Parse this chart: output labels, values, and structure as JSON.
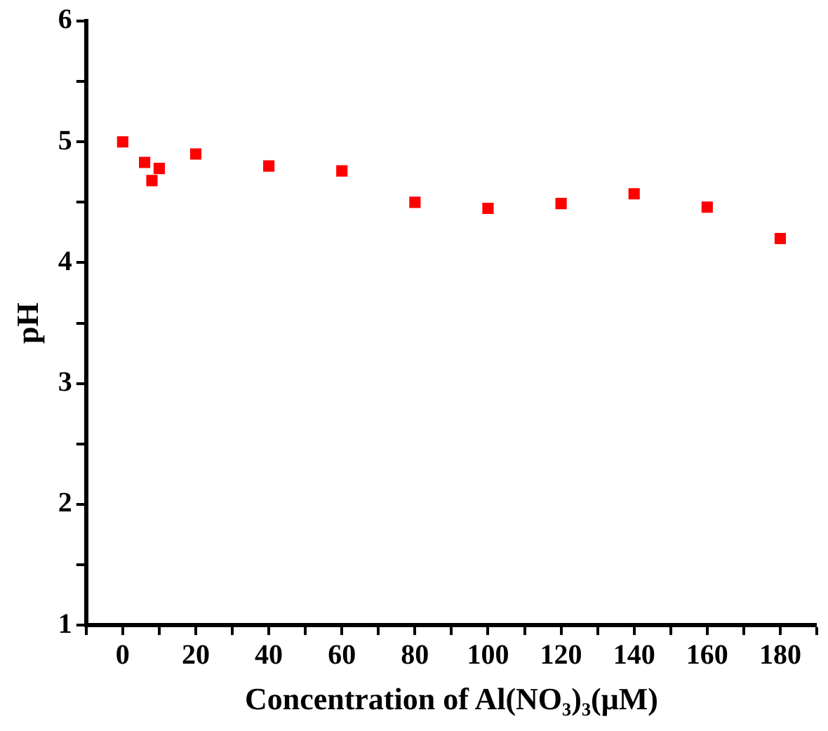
{
  "chart_data": {
    "type": "scatter",
    "xlabel": "Concentration of Al(NO₃)₃(μM)",
    "ylabel": "pH",
    "x": [
      0,
      6,
      8,
      10,
      20,
      40,
      60,
      80,
      100,
      120,
      140,
      160,
      180
    ],
    "series": [
      {
        "color": "#ff0000",
        "values": [
          5.0,
          4.83,
          4.68,
          4.78,
          4.9,
          4.8,
          4.76,
          4.5,
          4.45,
          4.49,
          4.57,
          4.46,
          4.2
        ]
      }
    ],
    "xlim": [
      -10,
      190
    ],
    "xticks": [
      {
        "value": -10,
        "label": null
      },
      0,
      {
        "value": 10,
        "label": null
      },
      20,
      {
        "value": 30,
        "label": null
      },
      40,
      {
        "value": 50,
        "label": null
      },
      60,
      {
        "value": 70,
        "label": null
      },
      80,
      {
        "value": 90,
        "label": null
      },
      100,
      {
        "value": 110,
        "label": null
      },
      120,
      {
        "value": 130,
        "label": null
      },
      140,
      {
        "value": 150,
        "label": null
      },
      160,
      {
        "value": 170,
        "label": null
      },
      180,
      {
        "value": 190,
        "label": null
      }
    ],
    "ylim": [
      1,
      6
    ],
    "yticks": [
      1,
      {
        "value": 1.5,
        "label": null
      },
      2,
      {
        "value": 2.5,
        "label": null
      },
      3,
      {
        "value": 3.5,
        "label": null
      },
      4,
      {
        "value": 4.5,
        "label": null
      },
      5,
      {
        "value": 5.5,
        "label": null
      },
      6
    ],
    "marker": "square",
    "grid": false,
    "legend": false
  }
}
